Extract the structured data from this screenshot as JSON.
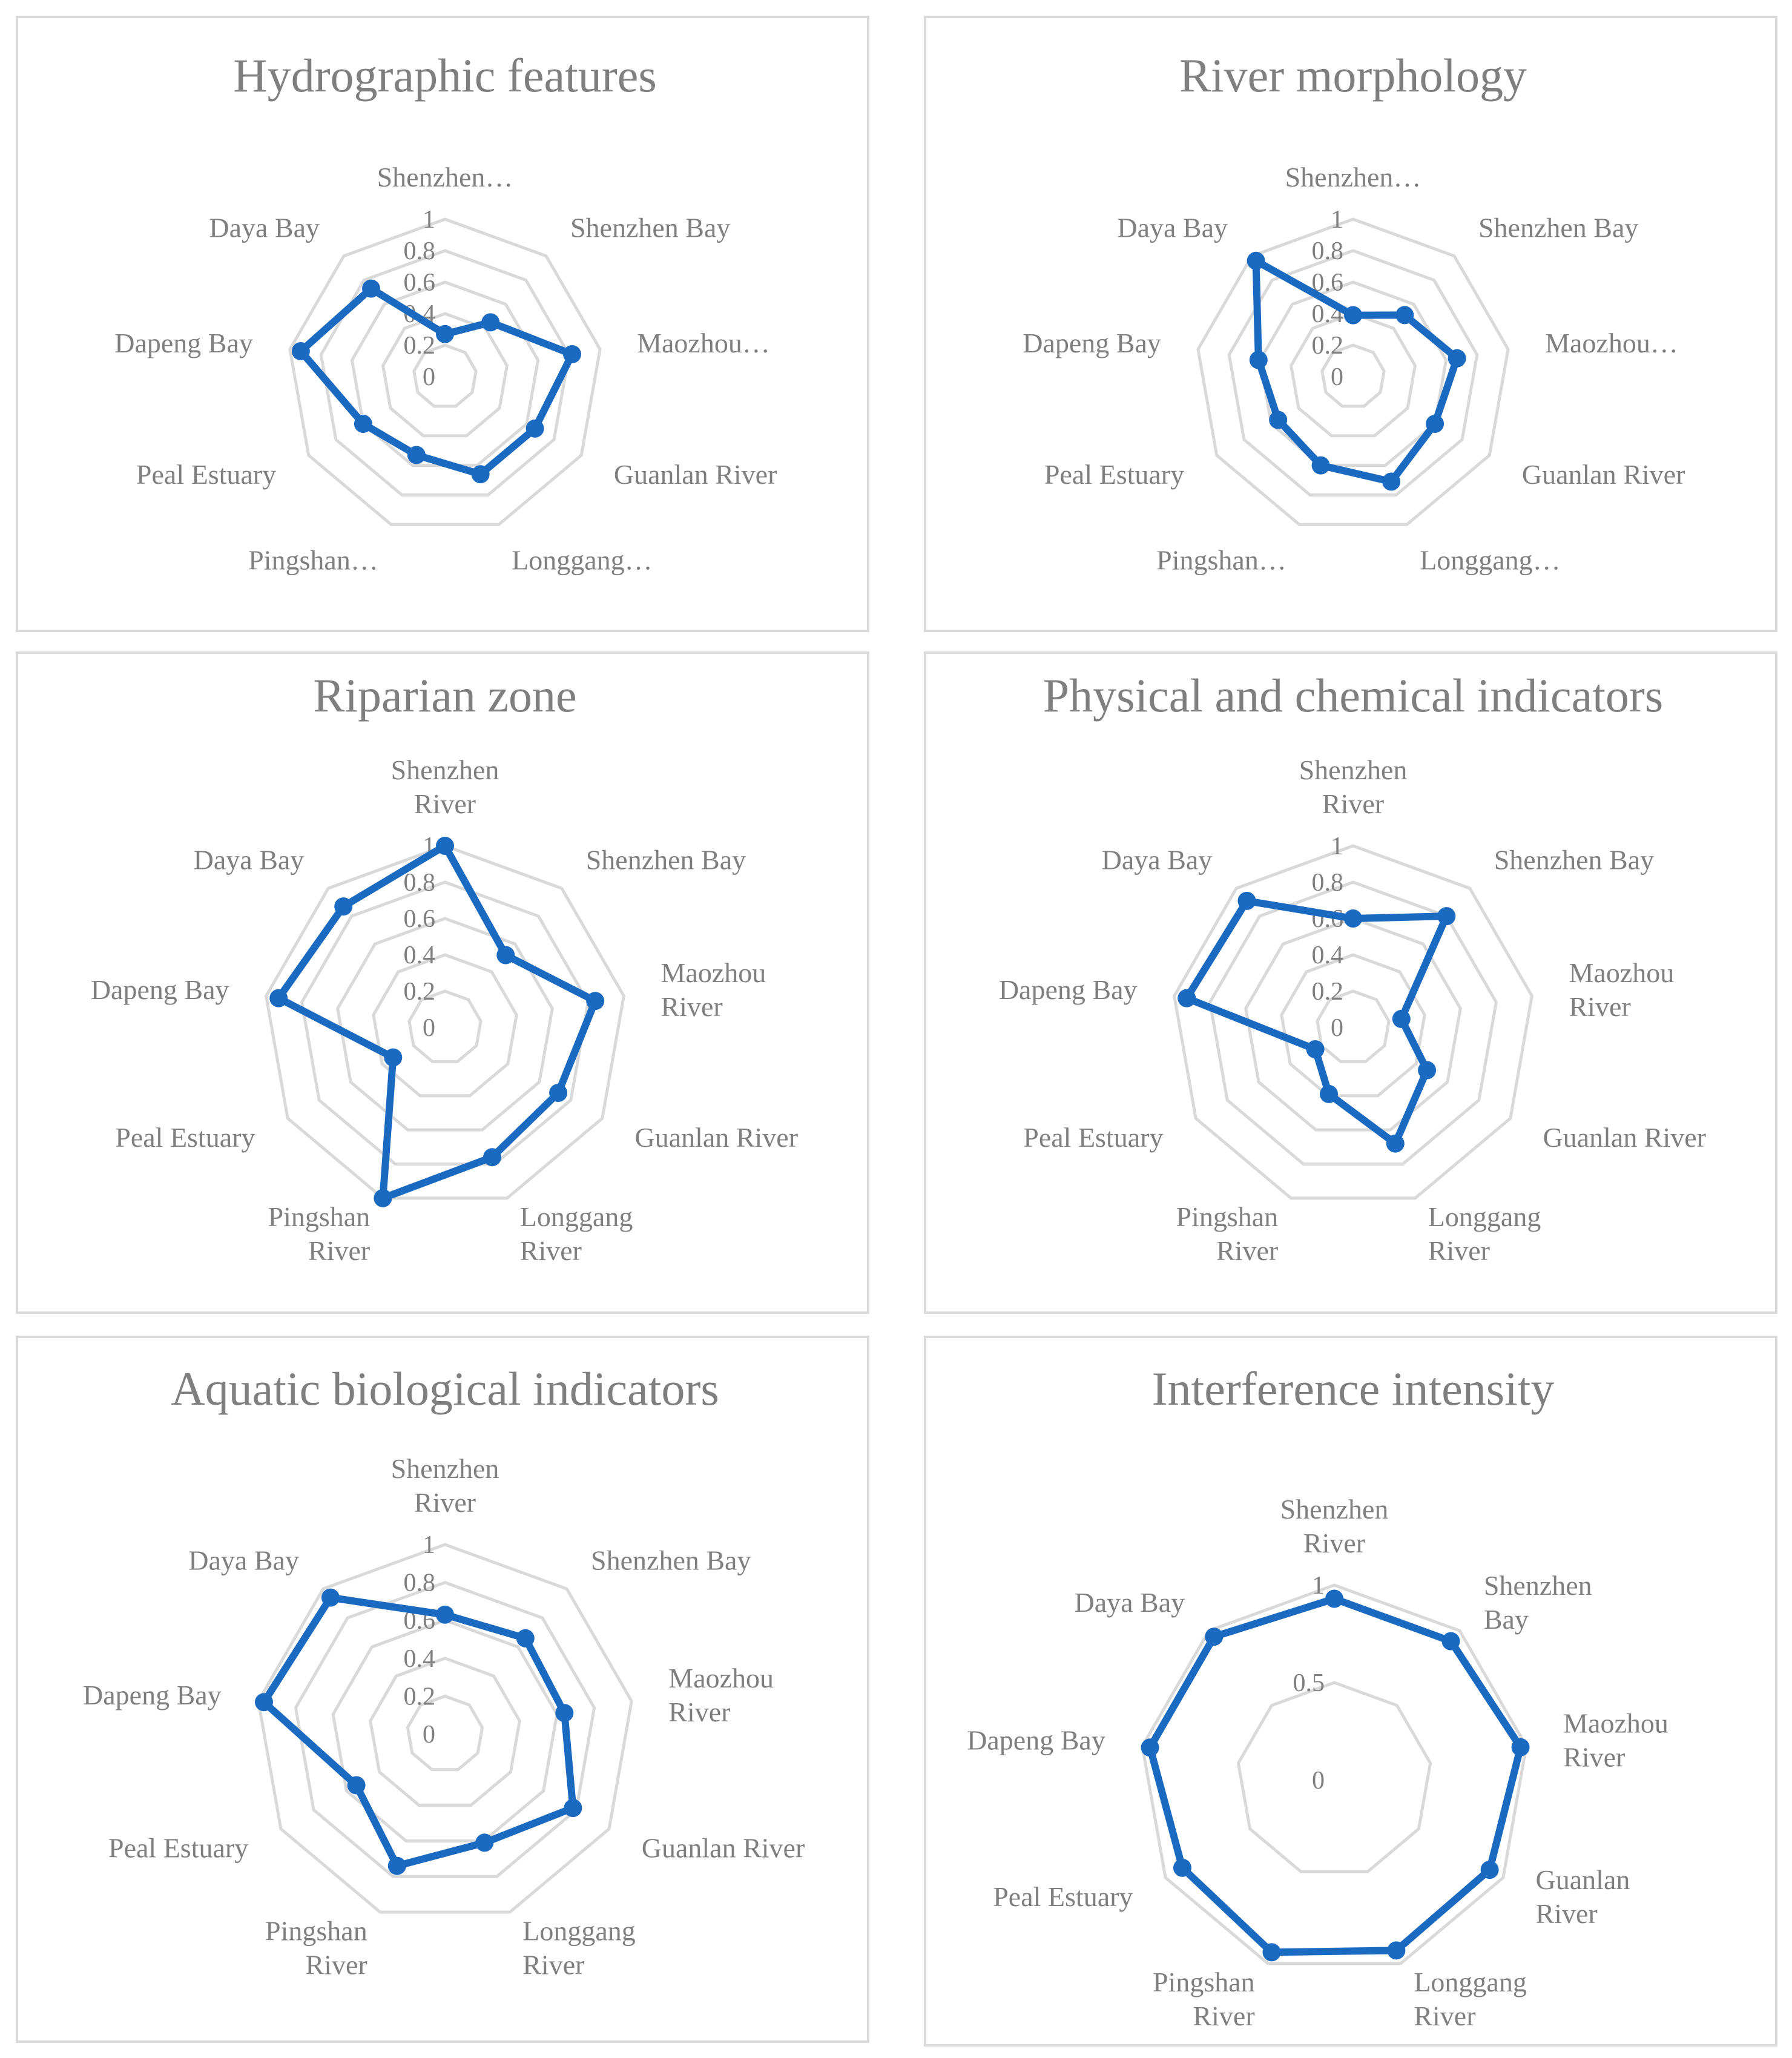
{
  "colors": {
    "series": "#1b6ac2",
    "grid": "#d9d9d9",
    "text": "#7f7f7f",
    "border": "#d9d9d9"
  },
  "chart_data": [
    {
      "type": "radar",
      "title": "Hydrographic features",
      "categories": [
        "Shenzhen…",
        "Shenzhen Bay",
        "Maozhou…",
        "Guanlan River",
        "Longgang…",
        "Pingshan…",
        "Peal Estuary",
        "Dapeng Bay",
        "Daya Bay"
      ],
      "ticks": [
        "0",
        "0.2",
        "0.4",
        "0.6",
        "0.8",
        "1"
      ],
      "ylim": [
        0,
        1
      ],
      "grid": true,
      "series": [
        {
          "values": [
            0.27,
            0.45,
            0.82,
            0.66,
            0.66,
            0.53,
            0.6,
            0.93,
            0.73
          ]
        }
      ]
    },
    {
      "type": "radar",
      "title": "River morphology",
      "categories": [
        "Shenzhen…",
        "Shenzhen Bay",
        "Maozhou…",
        "Guanlan River",
        "Longgang…",
        "Pingshan…",
        "Peal Estuary",
        "Dapeng Bay",
        "Daya Bay"
      ],
      "ticks": [
        "0",
        "0.2",
        "0.4",
        "0.6",
        "0.8",
        "1"
      ],
      "ylim": [
        0,
        1
      ],
      "grid": true,
      "series": [
        {
          "values": [
            0.39,
            0.51,
            0.67,
            0.6,
            0.71,
            0.6,
            0.55,
            0.61,
            0.96
          ]
        }
      ]
    },
    {
      "type": "radar",
      "title": "Riparian zone",
      "categories": [
        "Shenzhen\nRiver",
        "Shenzhen Bay",
        "Maozhou\nRiver",
        "Guanlan River",
        "Longgang\nRiver",
        "Pingshan\nRiver",
        "Peal Estuary",
        "Dapeng Bay",
        "Daya Bay"
      ],
      "ticks": [
        "0",
        "0.2",
        "0.4",
        "0.6",
        "0.8",
        "1"
      ],
      "ylim": [
        0,
        1
      ],
      "grid": true,
      "series": [
        {
          "values": [
            1.0,
            0.52,
            0.84,
            0.72,
            0.76,
            1.0,
            0.33,
            0.93,
            0.87
          ]
        }
      ]
    },
    {
      "type": "radar",
      "title": "Physical and chemical indicators",
      "categories": [
        "Shenzhen\nRiver",
        "Shenzhen Bay",
        "Maozhou\nRiver",
        "Guanlan River",
        "Longgang\nRiver",
        "Pingshan\nRiver",
        "Peal Estuary",
        "Dapeng Bay",
        "Daya Bay"
      ],
      "ticks": [
        "0",
        "0.2",
        "0.4",
        "0.6",
        "0.8",
        "1"
      ],
      "ylim": [
        0,
        1
      ],
      "grid": true,
      "series": [
        {
          "values": [
            0.6,
            0.8,
            0.27,
            0.47,
            0.68,
            0.39,
            0.24,
            0.93,
            0.91
          ]
        }
      ]
    },
    {
      "type": "radar",
      "title": "Aquatic biological indicators",
      "categories": [
        "Shenzhen\nRiver",
        "Shenzhen Bay",
        "Maozhou\nRiver",
        "Guanlan River",
        "Longgang\nRiver",
        "Pingshan\nRiver",
        "Peal Estuary",
        "Dapeng Bay",
        "Daya Bay"
      ],
      "ticks": [
        "0",
        "0.2",
        "0.4",
        "0.6",
        "0.8",
        "1"
      ],
      "ylim": [
        0,
        1
      ],
      "grid": true,
      "series": [
        {
          "values": [
            0.63,
            0.66,
            0.64,
            0.78,
            0.61,
            0.74,
            0.54,
            0.97,
            0.94
          ]
        }
      ]
    },
    {
      "type": "radar",
      "title": "Interference intensity",
      "categories": [
        "Shenzhen\nRiver",
        "Shenzhen\nBay",
        "Maozhou\nRiver",
        "Guanlan\nRiver",
        "Longgang\nRiver",
        "Pingshan\nRiver",
        "Peal Estuary",
        "Dapeng Bay",
        "Daya Bay"
      ],
      "ticks": [
        "0",
        "0.5",
        "1"
      ],
      "ylim": [
        0,
        1
      ],
      "grid": true,
      "series": [
        {
          "values": [
            0.93,
            0.93,
            0.97,
            0.92,
            0.93,
            0.94,
            0.9,
            0.96,
            0.96
          ]
        }
      ]
    }
  ]
}
